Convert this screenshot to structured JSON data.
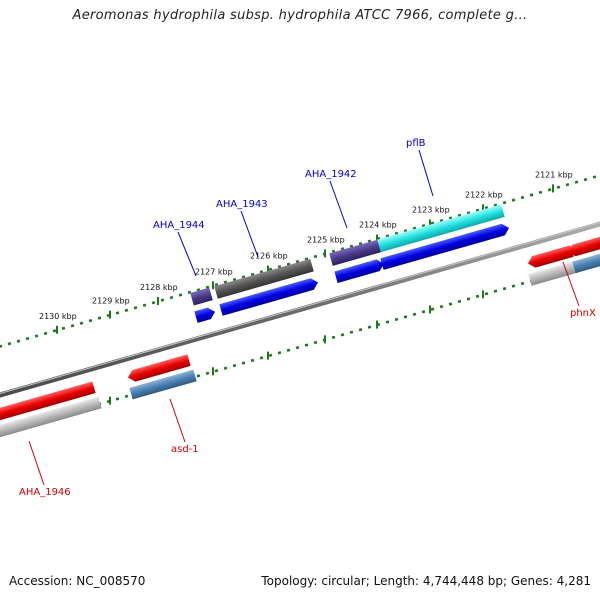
{
  "title": "Aeromonas hydrophila subsp. hydrophila ATCC 7966, complete g...",
  "footer": {
    "accession": "Accession: NC_008570",
    "summary": "Topology: circular; Length: 4,744,448 bp; Genes: 4,281"
  },
  "ticks": [
    {
      "label": "2121 kbp"
    },
    {
      "label": "2122 kbp"
    },
    {
      "label": "2123 kbp"
    },
    {
      "label": "2124 kbp"
    },
    {
      "label": "2125 kbp"
    },
    {
      "label": "2126 kbp"
    },
    {
      "label": "2127 kbp"
    },
    {
      "label": "2128 kbp"
    },
    {
      "label": "2129 kbp"
    },
    {
      "label": "2130 kbp"
    }
  ],
  "genes_forward": [
    {
      "label": "pflB"
    },
    {
      "label": "AHA_1942"
    },
    {
      "label": "AHA_1943"
    },
    {
      "label": "AHA_1944"
    }
  ],
  "genes_reverse": [
    {
      "label": "phnX"
    },
    {
      "label": "asd-1"
    },
    {
      "label": "AHA_1946"
    }
  ],
  "colors": {
    "forward_label": "#0000cc",
    "reverse_label": "#cc0000",
    "tick_dots": "#1a7a1a",
    "backbone": "#7a7a7a",
    "cds_blue": "#0a0ae0",
    "cds_red": "#e81010",
    "gene_cyan": "#22e0e0",
    "gene_gray": "#555555",
    "gene_purple": "#4a3a8a",
    "steel": "#4a7fb0",
    "silver": "#b8b8b8"
  }
}
